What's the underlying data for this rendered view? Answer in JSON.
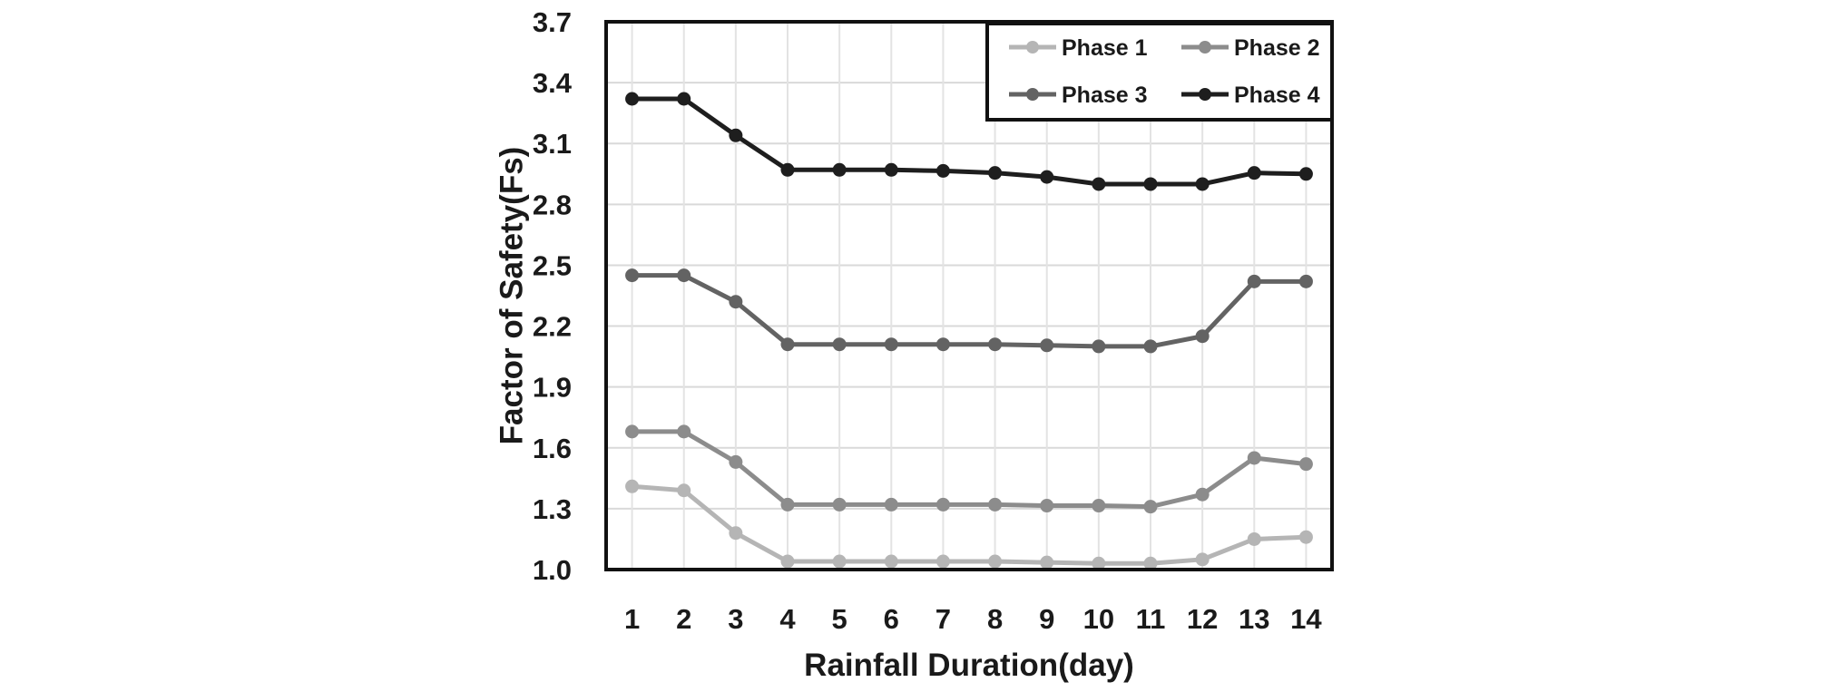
{
  "chart_data": {
    "type": "line",
    "title": "",
    "xlabel": "Rainfall Duration(day)",
    "ylabel": "Factor of Safety(Fs)",
    "x": [
      1,
      2,
      3,
      4,
      5,
      6,
      7,
      8,
      9,
      10,
      11,
      12,
      13,
      14
    ],
    "ylim": [
      1.0,
      3.7
    ],
    "yticks": [
      "1.0",
      "1.3",
      "1.6",
      "1.9",
      "2.2",
      "2.5",
      "2.8",
      "3.1",
      "3.4",
      "3.7"
    ],
    "grid": true,
    "legend_position": "top-right",
    "series": [
      {
        "name": "Phase 1",
        "color": "#b5b5b5",
        "values": [
          1.41,
          1.39,
          1.18,
          1.04,
          1.04,
          1.04,
          1.04,
          1.04,
          1.035,
          1.03,
          1.03,
          1.05,
          1.15,
          1.16
        ]
      },
      {
        "name": "Phase 2",
        "color": "#8c8c8c",
        "values": [
          1.68,
          1.68,
          1.53,
          1.32,
          1.32,
          1.32,
          1.32,
          1.32,
          1.315,
          1.315,
          1.31,
          1.37,
          1.55,
          1.52
        ]
      },
      {
        "name": "Phase 3",
        "color": "#636363",
        "values": [
          2.45,
          2.45,
          2.32,
          2.11,
          2.11,
          2.11,
          2.11,
          2.11,
          2.105,
          2.1,
          2.1,
          2.15,
          2.42,
          2.42
        ]
      },
      {
        "name": "Phase 4",
        "color": "#1e1e1e",
        "values": [
          3.32,
          3.32,
          3.14,
          2.97,
          2.97,
          2.97,
          2.965,
          2.955,
          2.935,
          2.9,
          2.9,
          2.9,
          2.955,
          2.95
        ]
      }
    ]
  }
}
